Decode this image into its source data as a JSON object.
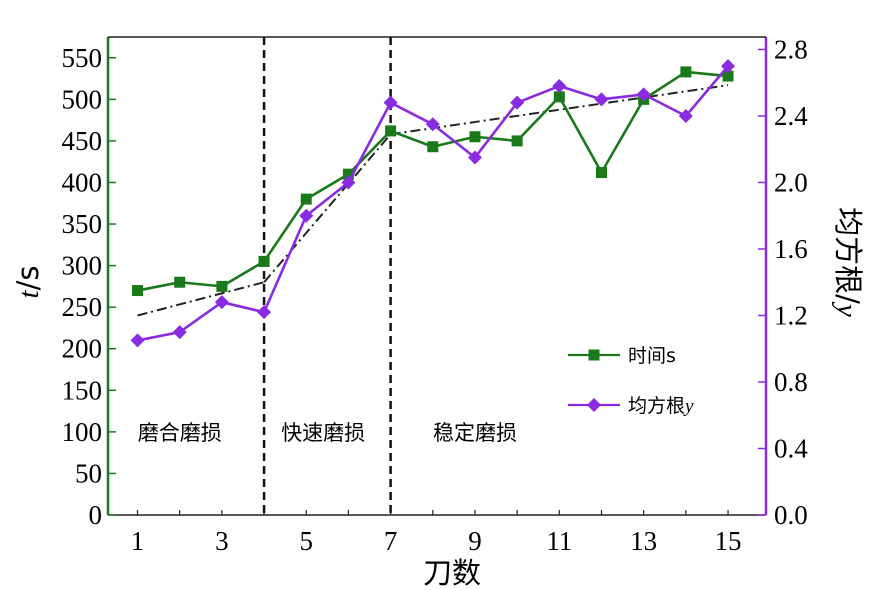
{
  "chart_data": {
    "type": "line",
    "x": [
      1,
      2,
      3,
      4,
      5,
      6,
      7,
      8,
      9,
      10,
      11,
      12,
      13,
      14,
      15
    ],
    "xlabel": "刀数",
    "xticks": [
      "1",
      "3",
      "5",
      "7",
      "9",
      "11",
      "13",
      "15"
    ],
    "xlim": [
      0.3,
      15.9
    ],
    "ylabel_left": {
      "italic": "t",
      "rest": "/s"
    },
    "ylim_left": [
      0,
      575
    ],
    "yticks_left": [
      "0",
      "50",
      "100",
      "150",
      "200",
      "250",
      "300",
      "350",
      "400",
      "450",
      "500",
      "550"
    ],
    "ylabel_right": {
      "rest": "均方根/",
      "italic": "y"
    },
    "ylim_right": [
      0,
      2.875
    ],
    "yticks_right": [
      "0.0",
      "0.4",
      "0.8",
      "1.2",
      "1.6",
      "2.0",
      "2.4",
      "2.8"
    ],
    "series": [
      {
        "name": "时间s",
        "axis": "left",
        "color": "#1a7a1a",
        "marker": "square",
        "values": [
          270,
          280,
          275,
          305,
          380,
          410,
          462,
          443,
          455,
          450,
          503,
          412,
          500,
          533,
          528
        ]
      },
      {
        "name": "均方根",
        "name_italic": "y",
        "axis": "right",
        "color": "#8a2be2",
        "marker": "diamond",
        "values": [
          1.05,
          1.1,
          1.28,
          1.22,
          1.8,
          2.0,
          2.48,
          2.35,
          2.15,
          2.48,
          2.58,
          2.5,
          2.53,
          2.4,
          2.7
        ]
      }
    ],
    "trend_segments": [
      {
        "x0": 1,
        "y0": 240,
        "x1": 4,
        "y1": 280
      },
      {
        "x0": 4,
        "y0": 280,
        "x1": 7,
        "y1": 458
      },
      {
        "x0": 7,
        "y0": 458,
        "x1": 15,
        "y1": 517
      }
    ],
    "dividers_x": [
      4,
      7
    ],
    "regions": [
      {
        "label": "磨合磨损",
        "x": 2.0
      },
      {
        "label": "快速磨损",
        "x": 5.4
      },
      {
        "label": "稳定磨损",
        "x": 9.0
      }
    ],
    "region_label_y": 90,
    "legend_position": "center-right",
    "colors": {
      "left_axis": "#1a7a1a",
      "right_axis": "#8a2be2",
      "trend": "#222222"
    }
  }
}
